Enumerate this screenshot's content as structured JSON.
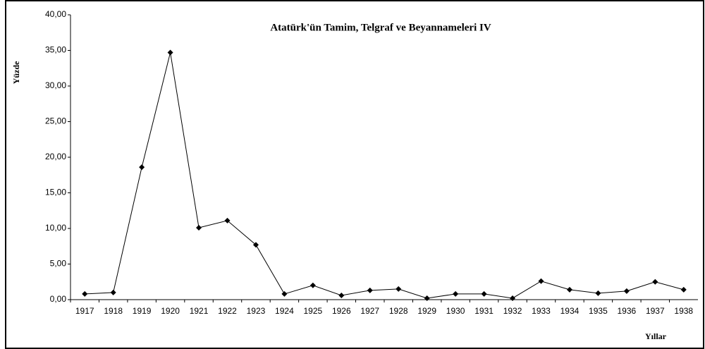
{
  "chart_data": {
    "type": "line",
    "title": "Atatürk'ün Tamim, Telgraf ve Beyannameleri IV",
    "y_label": "Yüzde",
    "x_label": "Yıllar",
    "categories": [
      "1917",
      "1918",
      "1919",
      "1920",
      "1921",
      "1922",
      "1923",
      "1924",
      "1925",
      "1926",
      "1927",
      "1928",
      "1929",
      "1930",
      "1931",
      "1932",
      "1933",
      "1934",
      "1935",
      "1936",
      "1937",
      "1938"
    ],
    "series": [
      {
        "name": "Yüzde",
        "color": "#000000",
        "values": [
          0.8,
          1.0,
          18.6,
          34.7,
          10.1,
          11.1,
          7.7,
          0.8,
          2.0,
          0.6,
          1.3,
          1.5,
          0.2,
          0.8,
          0.8,
          0.2,
          2.6,
          1.4,
          0.9,
          1.2,
          2.5,
          1.4
        ]
      }
    ],
    "ylim": [
      0,
      40
    ],
    "yticks": [
      {
        "value": 0,
        "label": "0,00"
      },
      {
        "value": 5,
        "label": "5,00"
      },
      {
        "value": 10,
        "label": "10,00"
      },
      {
        "value": 15,
        "label": "15,00"
      },
      {
        "value": 20,
        "label": "20,00"
      },
      {
        "value": 25,
        "label": "25,00"
      },
      {
        "value": 30,
        "label": "30,00"
      },
      {
        "value": 35,
        "label": "35,00"
      },
      {
        "value": 40,
        "label": "40,00"
      }
    ],
    "grid": false
  }
}
